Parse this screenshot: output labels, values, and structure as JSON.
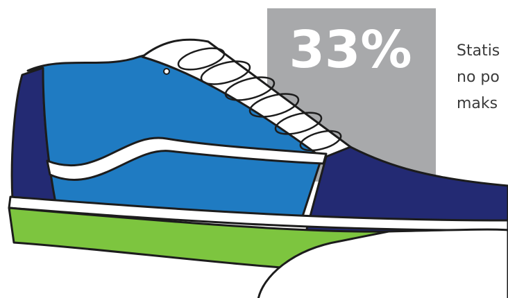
{
  "stat": {
    "value": "33%"
  },
  "text": {
    "lines": [
      "Statis",
      "no po",
      "maks"
    ]
  }
}
